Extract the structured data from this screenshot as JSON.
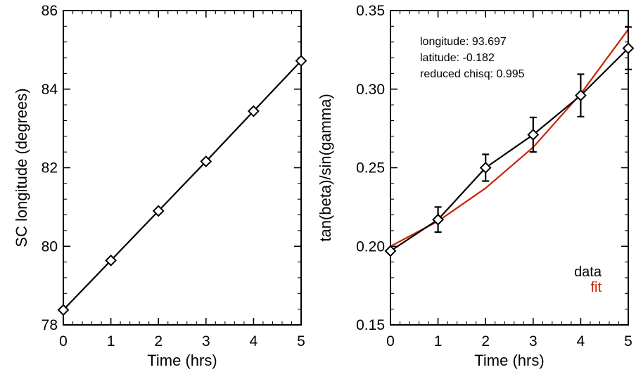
{
  "chart_data": [
    {
      "type": "line",
      "xlabel": "Time (hrs)",
      "ylabel": "SC longitude (degrees)",
      "xlim": [
        0,
        5
      ],
      "ylim": [
        78,
        86
      ],
      "xticks": [
        0,
        1,
        2,
        3,
        4,
        5
      ],
      "yticks": [
        78,
        80,
        82,
        84,
        86
      ],
      "x_tick_labels": [
        "0",
        "1",
        "2",
        "3",
        "4",
        "5"
      ],
      "y_tick_labels": [
        "78",
        "80",
        "82",
        "84",
        "86"
      ],
      "grid": false,
      "series": [
        {
          "color": "#000000",
          "marker": "diamond",
          "x": [
            0,
            1,
            2,
            3,
            4,
            5
          ],
          "y": [
            78.38,
            79.64,
            80.9,
            82.16,
            83.44,
            84.72
          ]
        }
      ]
    },
    {
      "type": "line",
      "xlabel": "Time (hrs)",
      "ylabel": "tan(beta)/sin(gamma)",
      "xlim": [
        0,
        5
      ],
      "ylim": [
        0.15,
        0.35
      ],
      "xticks": [
        0,
        1,
        2,
        3,
        4,
        5
      ],
      "yticks": [
        0.15,
        0.2,
        0.25,
        0.3,
        0.35
      ],
      "x_tick_labels": [
        "0",
        "1",
        "2",
        "3",
        "4",
        "5"
      ],
      "y_tick_labels": [
        "0.15",
        "0.20",
        "0.25",
        "0.30",
        "0.35"
      ],
      "grid": false,
      "annotations": [
        "longitude: 93.697",
        "latitude: -0.182",
        "reduced chisq: 0.995"
      ],
      "legend": {
        "placement": "bottom-right",
        "entries": [
          "data",
          "fit"
        ]
      },
      "series": [
        {
          "name": "data",
          "color": "#000000",
          "marker": "diamond",
          "x": [
            0,
            1,
            2,
            3,
            4,
            5
          ],
          "y": [
            0.197,
            0.217,
            0.25,
            0.271,
            0.296,
            0.326
          ],
          "yerr": [
            0.0,
            0.008,
            0.0085,
            0.011,
            0.0135,
            0.0135
          ]
        },
        {
          "name": "fit",
          "color": "#cc2200",
          "marker": "none",
          "x": [
            0,
            1,
            2,
            3,
            4,
            5
          ],
          "y": [
            0.2,
            0.216,
            0.237,
            0.263,
            0.297,
            0.338
          ]
        }
      ]
    }
  ]
}
